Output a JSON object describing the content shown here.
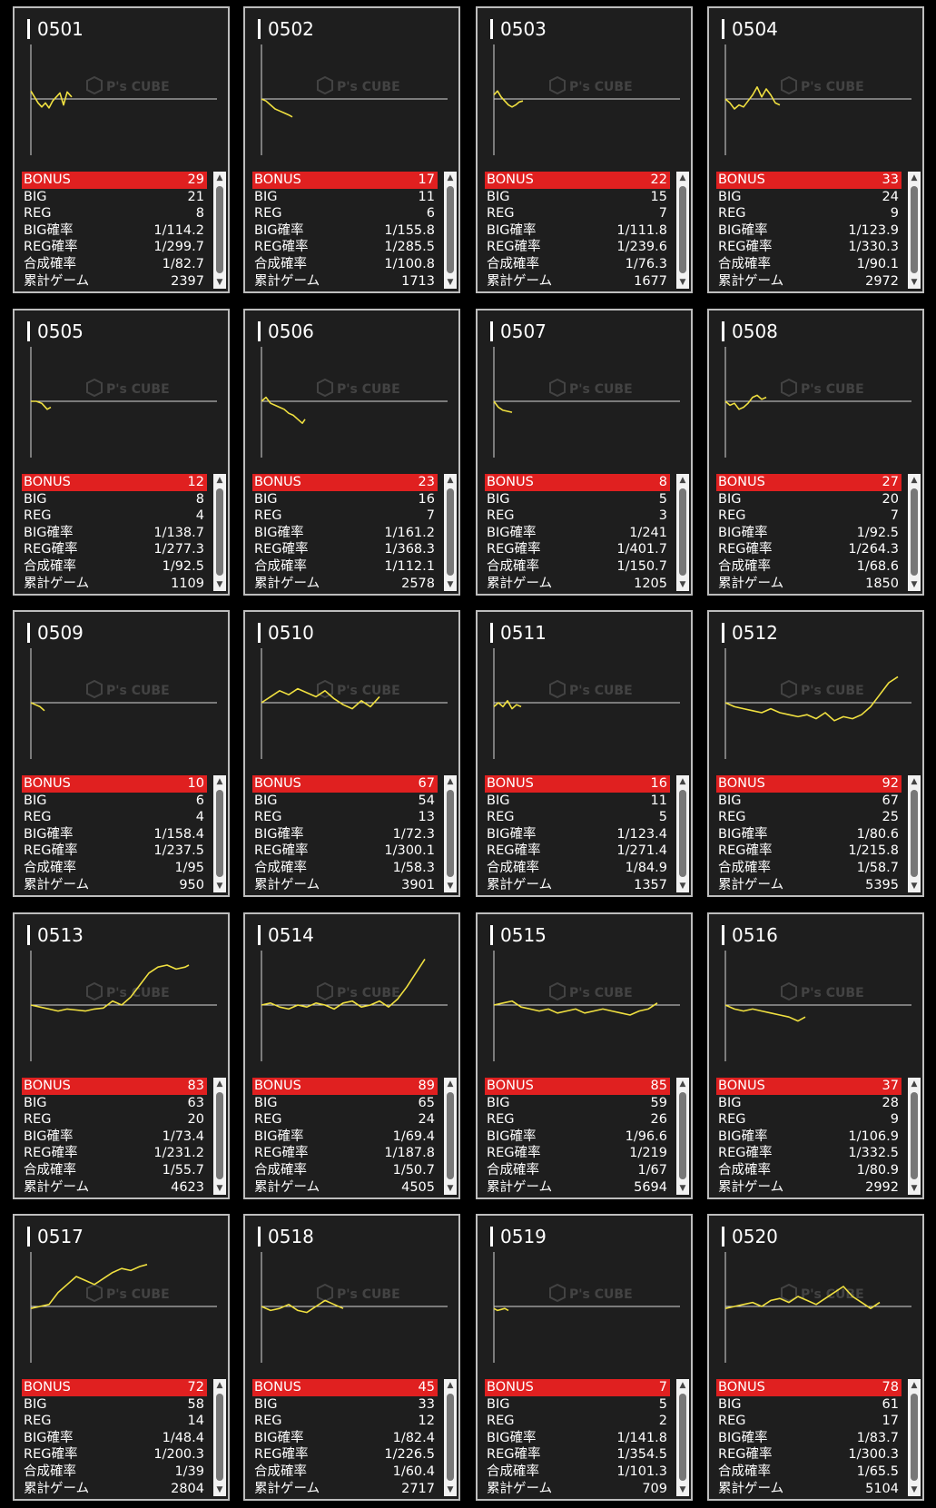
{
  "labels": [
    "BONUS",
    "BIG",
    "REG",
    "BIG確率",
    "REG確率",
    "合成確率",
    "累計ゲーム"
  ],
  "watermark": {
    "brand": "P's CUBE"
  },
  "colors": {
    "background": "#000000",
    "card": "#1e1e1e",
    "bonus_bar": "#e02020",
    "line": "#f0e040",
    "baseline": "#d8d8d8"
  },
  "icons": {
    "scroll_up": "triangle-up-icon",
    "scroll_down": "triangle-down-icon",
    "watermark": "cube-logo-icon"
  },
  "machines": [
    {
      "id": "0501",
      "stats": [
        "29",
        "21",
        "8",
        "1/114.2",
        "1/299.7",
        "1/82.7",
        "2397"
      ],
      "chart": {
        "x": [
          0,
          4,
          8,
          12,
          16,
          20,
          24,
          28,
          32,
          36,
          40,
          45
        ],
        "y": [
          8,
          2,
          -4,
          -8,
          -4,
          -9,
          -2,
          2,
          6,
          -6,
          7,
          2
        ]
      }
    },
    {
      "id": "0502",
      "stats": [
        "17",
        "11",
        "6",
        "1/155.8",
        "1/285.5",
        "1/100.8",
        "1713"
      ],
      "chart": {
        "x": [
          0,
          5,
          10,
          15,
          20,
          25,
          30,
          34
        ],
        "y": [
          0,
          -2,
          -6,
          -10,
          -12,
          -14,
          -16,
          -18
        ]
      }
    },
    {
      "id": "0503",
      "stats": [
        "22",
        "15",
        "7",
        "1/111.8",
        "1/239.6",
        "1/76.3",
        "1677"
      ],
      "chart": {
        "x": [
          0,
          4,
          8,
          12,
          16,
          20,
          24,
          28,
          32
        ],
        "y": [
          4,
          8,
          2,
          -2,
          -6,
          -8,
          -6,
          -3,
          -2
        ]
      }
    },
    {
      "id": "0504",
      "stats": [
        "33",
        "24",
        "9",
        "1/123.9",
        "1/330.3",
        "1/90.1",
        "2972"
      ],
      "chart": {
        "x": [
          0,
          5,
          10,
          15,
          20,
          25,
          30,
          35,
          40,
          45,
          50,
          55,
          60
        ],
        "y": [
          0,
          -4,
          -10,
          -6,
          -8,
          -2,
          4,
          12,
          2,
          10,
          4,
          -4,
          -6
        ]
      }
    },
    {
      "id": "0505",
      "stats": [
        "12",
        "8",
        "4",
        "1/138.7",
        "1/277.3",
        "1/92.5",
        "1109"
      ],
      "chart": {
        "x": [
          0,
          6,
          12,
          18,
          22
        ],
        "y": [
          0,
          0,
          -2,
          -8,
          -6
        ]
      }
    },
    {
      "id": "0506",
      "stats": [
        "23",
        "16",
        "7",
        "1/161.2",
        "1/368.3",
        "1/112.1",
        "2578"
      ],
      "chart": {
        "x": [
          0,
          5,
          10,
          15,
          20,
          25,
          30,
          35,
          40,
          45,
          48
        ],
        "y": [
          0,
          4,
          -2,
          -4,
          -6,
          -8,
          -12,
          -14,
          -18,
          -22,
          -18
        ]
      }
    },
    {
      "id": "0507",
      "stats": [
        "8",
        "5",
        "3",
        "1/241",
        "1/401.7",
        "1/150.7",
        "1205"
      ],
      "chart": {
        "x": [
          0,
          5,
          10,
          15,
          20
        ],
        "y": [
          0,
          -6,
          -9,
          -10,
          -11
        ]
      }
    },
    {
      "id": "0508",
      "stats": [
        "27",
        "20",
        "7",
        "1/92.5",
        "1/264.3",
        "1/68.6",
        "1850"
      ],
      "chart": {
        "x": [
          0,
          5,
          10,
          15,
          20,
          25,
          30,
          35,
          40,
          45
        ],
        "y": [
          0,
          -4,
          -2,
          -8,
          -6,
          -2,
          4,
          6,
          2,
          4
        ]
      }
    },
    {
      "id": "0509",
      "stats": [
        "10",
        "6",
        "4",
        "1/158.4",
        "1/237.5",
        "1/95",
        "950"
      ],
      "chart": {
        "x": [
          0,
          5,
          10,
          15
        ],
        "y": [
          0,
          -2,
          -4,
          -8
        ]
      }
    },
    {
      "id": "0510",
      "stats": [
        "67",
        "54",
        "13",
        "1/72.3",
        "1/300.1",
        "1/58.3",
        "3901"
      ],
      "chart": {
        "x": [
          0,
          10,
          20,
          30,
          40,
          50,
          60,
          70,
          80,
          90,
          100,
          110,
          120,
          130
        ],
        "y": [
          0,
          6,
          12,
          8,
          14,
          10,
          6,
          12,
          4,
          -2,
          -6,
          2,
          -4,
          6
        ]
      }
    },
    {
      "id": "0511",
      "stats": [
        "16",
        "11",
        "5",
        "1/123.4",
        "1/271.4",
        "1/84.9",
        "1357"
      ],
      "chart": {
        "x": [
          0,
          5,
          10,
          15,
          20,
          25,
          30
        ],
        "y": [
          -4,
          0,
          -4,
          2,
          -6,
          -2,
          -4
        ]
      }
    },
    {
      "id": "0512",
      "stats": [
        "92",
        "67",
        "25",
        "1/80.6",
        "1/215.8",
        "1/58.7",
        "5395"
      ],
      "chart": {
        "x": [
          0,
          10,
          20,
          30,
          40,
          50,
          60,
          70,
          80,
          90,
          100,
          110,
          120,
          130,
          140,
          150,
          160,
          170,
          180,
          190
        ],
        "y": [
          0,
          -4,
          -6,
          -8,
          -10,
          -6,
          -10,
          -12,
          -14,
          -12,
          -16,
          -10,
          -18,
          -14,
          -16,
          -12,
          -4,
          8,
          20,
          26
        ]
      }
    },
    {
      "id": "0513",
      "stats": [
        "83",
        "63",
        "20",
        "1/73.4",
        "1/231.2",
        "1/55.7",
        "4623"
      ],
      "chart": {
        "x": [
          0,
          10,
          20,
          30,
          40,
          50,
          60,
          70,
          80,
          90,
          100,
          110,
          120,
          130,
          140,
          150,
          160,
          170,
          174
        ],
        "y": [
          0,
          -2,
          -4,
          -6,
          -4,
          -5,
          -6,
          -4,
          -3,
          4,
          0,
          8,
          20,
          32,
          38,
          40,
          36,
          38,
          40
        ]
      }
    },
    {
      "id": "0514",
      "stats": [
        "89",
        "65",
        "24",
        "1/69.4",
        "1/187.8",
        "1/50.7",
        "4505"
      ],
      "chart": {
        "x": [
          0,
          10,
          20,
          30,
          40,
          50,
          60,
          70,
          80,
          90,
          100,
          110,
          120,
          130,
          140,
          150,
          160,
          170,
          180
        ],
        "y": [
          0,
          2,
          -2,
          -4,
          0,
          -2,
          2,
          0,
          -4,
          2,
          4,
          -2,
          0,
          4,
          -2,
          6,
          18,
          32,
          46
        ]
      }
    },
    {
      "id": "0515",
      "stats": [
        "85",
        "59",
        "26",
        "1/96.6",
        "1/219",
        "1/67",
        "5694"
      ],
      "chart": {
        "x": [
          0,
          10,
          20,
          30,
          40,
          50,
          60,
          70,
          80,
          90,
          100,
          110,
          120,
          130,
          140,
          150,
          160,
          170,
          180
        ],
        "y": [
          0,
          2,
          4,
          -2,
          -4,
          -6,
          -4,
          -8,
          -6,
          -4,
          -8,
          -6,
          -4,
          -6,
          -8,
          -10,
          -6,
          -4,
          2
        ]
      }
    },
    {
      "id": "0516",
      "stats": [
        "37",
        "28",
        "9",
        "1/106.9",
        "1/332.5",
        "1/80.9",
        "2992"
      ],
      "chart": {
        "x": [
          0,
          10,
          20,
          30,
          40,
          50,
          60,
          70,
          80,
          88
        ],
        "y": [
          0,
          -4,
          -6,
          -4,
          -6,
          -8,
          -10,
          -12,
          -16,
          -12
        ]
      }
    },
    {
      "id": "0517",
      "stats": [
        "72",
        "58",
        "14",
        "1/48.4",
        "1/200.3",
        "1/39",
        "2804"
      ],
      "chart": {
        "x": [
          0,
          10,
          20,
          30,
          40,
          50,
          60,
          70,
          80,
          90,
          100,
          110,
          120,
          128
        ],
        "y": [
          -2,
          0,
          2,
          14,
          22,
          30,
          26,
          22,
          28,
          34,
          38,
          36,
          40,
          42
        ]
      }
    },
    {
      "id": "0518",
      "stats": [
        "45",
        "33",
        "12",
        "1/82.4",
        "1/226.5",
        "1/60.4",
        "2717"
      ],
      "chart": {
        "x": [
          0,
          10,
          20,
          30,
          40,
          50,
          60,
          70,
          80,
          90
        ],
        "y": [
          0,
          -4,
          -2,
          2,
          -4,
          -6,
          0,
          6,
          2,
          -2
        ]
      }
    },
    {
      "id": "0519",
      "stats": [
        "7",
        "5",
        "2",
        "1/141.8",
        "1/354.5",
        "1/101.3",
        "709"
      ],
      "chart": {
        "x": [
          0,
          4,
          8,
          12,
          16
        ],
        "y": [
          -2,
          -4,
          -3,
          -2,
          -4
        ]
      }
    },
    {
      "id": "0520",
      "stats": [
        "78",
        "61",
        "17",
        "1/83.7",
        "1/300.3",
        "1/65.5",
        "5104"
      ],
      "chart": {
        "x": [
          0,
          10,
          20,
          30,
          40,
          50,
          60,
          70,
          80,
          90,
          100,
          110,
          120,
          130,
          140,
          150,
          160,
          170
        ],
        "y": [
          -2,
          0,
          2,
          4,
          0,
          6,
          8,
          4,
          10,
          6,
          2,
          8,
          14,
          20,
          10,
          4,
          -2,
          4
        ]
      }
    }
  ]
}
